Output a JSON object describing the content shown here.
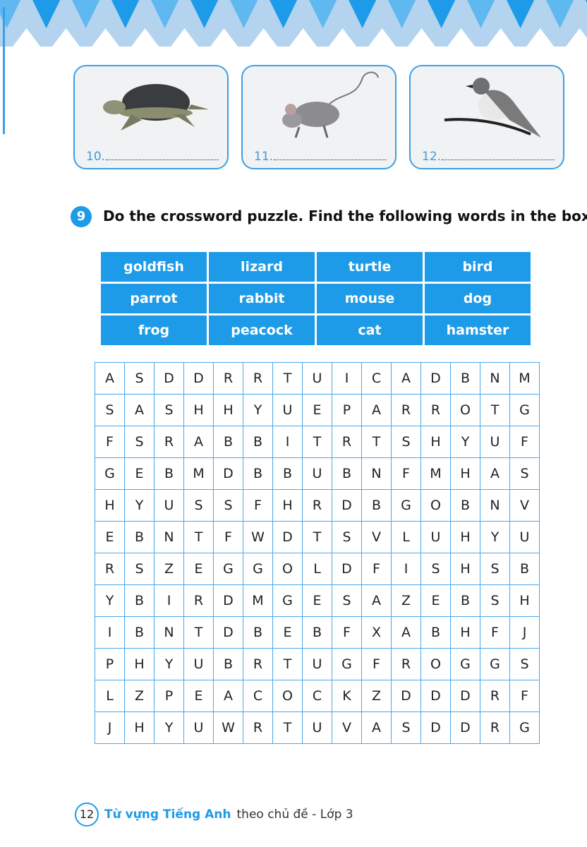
{
  "header": {
    "colors": {
      "light": "#b3d3ef",
      "dark": "#1e9be8",
      "mid": "#5fb8ef"
    }
  },
  "pictures": [
    {
      "number": "10.",
      "animal": "turtle-image"
    },
    {
      "number": "11.",
      "animal": "mouse-image"
    },
    {
      "number": "12.",
      "animal": "bird-image"
    }
  ],
  "exercise": {
    "number": "9",
    "title": "Do the crossword puzzle. Find the following words in the box."
  },
  "words": [
    "goldfish",
    "lizard",
    "turtle",
    "bird",
    "parrot",
    "rabbit",
    "mouse",
    "dog",
    "frog",
    "peacock",
    "cat",
    "hamster"
  ],
  "grid": [
    [
      "A",
      "S",
      "D",
      "D",
      "R",
      "R",
      "T",
      "U",
      "I",
      "C",
      "A",
      "D",
      "B",
      "N",
      "M"
    ],
    [
      "S",
      "A",
      "S",
      "H",
      "H",
      "Y",
      "U",
      "E",
      "P",
      "A",
      "R",
      "R",
      "O",
      "T",
      "G"
    ],
    [
      "F",
      "S",
      "R",
      "A",
      "B",
      "B",
      "I",
      "T",
      "R",
      "T",
      "S",
      "H",
      "Y",
      "U",
      "F"
    ],
    [
      "G",
      "E",
      "B",
      "M",
      "D",
      "B",
      "B",
      "U",
      "B",
      "N",
      "F",
      "M",
      "H",
      "A",
      "S"
    ],
    [
      "H",
      "Y",
      "U",
      "S",
      "S",
      "F",
      "H",
      "R",
      "D",
      "B",
      "G",
      "O",
      "B",
      "N",
      "V"
    ],
    [
      "E",
      "B",
      "N",
      "T",
      "F",
      "W",
      "D",
      "T",
      "S",
      "V",
      "L",
      "U",
      "H",
      "Y",
      "U"
    ],
    [
      "R",
      "S",
      "Z",
      "E",
      "G",
      "G",
      "O",
      "L",
      "D",
      "F",
      "I",
      "S",
      "H",
      "S",
      "B"
    ],
    [
      "Y",
      "B",
      "I",
      "R",
      "D",
      "M",
      "G",
      "E",
      "S",
      "A",
      "Z",
      "E",
      "B",
      "S",
      "H"
    ],
    [
      "I",
      "B",
      "N",
      "T",
      "D",
      "B",
      "E",
      "B",
      "F",
      "X",
      "A",
      "B",
      "H",
      "F",
      "J"
    ],
    [
      "P",
      "H",
      "Y",
      "U",
      "B",
      "R",
      "T",
      "U",
      "G",
      "F",
      "R",
      "O",
      "G",
      "G",
      "S"
    ],
    [
      "L",
      "Z",
      "P",
      "E",
      "A",
      "C",
      "O",
      "C",
      "K",
      "Z",
      "D",
      "D",
      "D",
      "R",
      "F"
    ],
    [
      "J",
      "H",
      "Y",
      "U",
      "W",
      "R",
      "T",
      "U",
      "V",
      "A",
      "S",
      "D",
      "D",
      "R",
      "G"
    ]
  ],
  "footer": {
    "page": "12",
    "title_bold": "Từ vựng Tiếng Anh",
    "title_rest": "theo chủ đề - Lớp 3"
  }
}
